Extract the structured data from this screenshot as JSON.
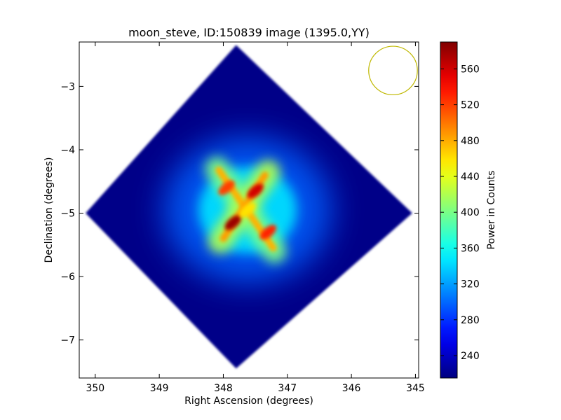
{
  "chart_data": {
    "type": "heatmap",
    "title": "moon_steve, ID:150839 image (1395.0,YY)",
    "xlabel": "Right Ascension (degrees)",
    "ylabel": "Declination (degrees)",
    "xlim": [
      350.25,
      344.95
    ],
    "ylim": [
      -7.6,
      -2.3
    ],
    "x_ticks": [
      350,
      349,
      348,
      347,
      346,
      345
    ],
    "x_tick_labels": [
      "350",
      "349",
      "348",
      "347",
      "346",
      "345"
    ],
    "y_ticks": [
      -3,
      -4,
      -5,
      -6,
      -7
    ],
    "y_tick_labels": [
      "−3",
      "−4",
      "−5",
      "−6",
      "−7"
    ],
    "grid": false,
    "background_value": 218,
    "colorbar": {
      "label": "Power in Counts",
      "min": 215,
      "max": 590,
      "ticks": [
        240,
        280,
        320,
        360,
        400,
        440,
        480,
        520,
        560
      ],
      "tick_labels": [
        "240",
        "280",
        "320",
        "360",
        "400",
        "440",
        "480",
        "520",
        "560"
      ],
      "colormap": "jet"
    },
    "footprint": {
      "shape": "diamond",
      "vertices": [
        [
          347.8,
          -2.35
        ],
        [
          345.05,
          -5.0
        ],
        [
          347.8,
          -7.45
        ],
        [
          350.15,
          -5.0
        ]
      ]
    },
    "beam_circle": {
      "ra": 345.35,
      "dec": -2.75,
      "radius_deg": 0.38,
      "color": "#bfb800"
    },
    "features": [
      {
        "name": "diag1-upper-left",
        "ra": 347.95,
        "dec": -4.6,
        "peak": 520
      },
      {
        "name": "diag1-lower-right",
        "ra": 347.3,
        "dec": -5.3,
        "peak": 530
      },
      {
        "name": "diag2-upper-right",
        "ra": 347.5,
        "dec": -4.65,
        "peak": 560
      },
      {
        "name": "diag2-lower-left",
        "ra": 347.85,
        "dec": -5.15,
        "peak": 580
      },
      {
        "name": "center",
        "ra": 347.62,
        "dec": -4.95,
        "peak": 460
      }
    ]
  }
}
